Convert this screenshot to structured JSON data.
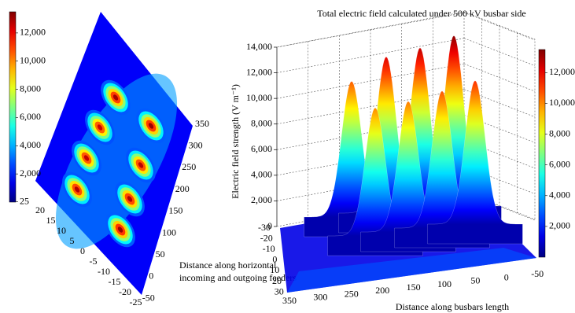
{
  "chart_data": [
    {
      "type": "surface",
      "colormap": "jet",
      "clim": [
        0,
        13500
      ],
      "colorbar_ticks": [
        {
          "value": 12000,
          "label": "12,000"
        },
        {
          "value": 10000,
          "label": "10,000"
        },
        {
          "value": 8000,
          "label": "8,000"
        },
        {
          "value": 6000,
          "label": "6,000"
        },
        {
          "value": 4000,
          "label": "4,000"
        },
        {
          "value": 2000,
          "label": "2,000"
        },
        25
      ],
      "yticks": [
        20,
        15,
        10,
        5,
        0,
        -5,
        -10,
        -15,
        -20,
        -25
      ],
      "xticks": [
        350,
        300,
        250,
        200,
        150,
        100,
        50,
        0,
        -50
      ],
      "xlabel": [
        "Distance along  horizontal",
        "incoming and outgoing feeders"
      ],
      "peak_values": [
        13000,
        12500,
        12600,
        12800,
        13100,
        12700,
        12900,
        13200
      ]
    },
    {
      "type": "surface",
      "title": "Total electric field calculated under 500 kV busbar side",
      "colormap": "jet",
      "clim": [
        0,
        13500
      ],
      "colorbar_ticks": [
        {
          "value": 12000,
          "label": "12,000"
        },
        {
          "value": 10000,
          "label": "10,000"
        },
        {
          "value": 8000,
          "label": "8,000"
        },
        {
          "value": 6000,
          "label": "6,000"
        },
        {
          "value": 4000,
          "label": "4,000"
        },
        {
          "value": 2000,
          "label": "2,000"
        }
      ],
      "zlim": [
        0,
        14000
      ],
      "zticks": [
        0,
        {
          "value": 2000,
          "label": "2,000"
        },
        {
          "value": 4000,
          "label": "4,000"
        },
        {
          "value": 6000,
          "label": "6,000"
        },
        {
          "value": 8000,
          "label": "8,000"
        },
        {
          "value": 10000,
          "label": "10,000"
        },
        {
          "value": 12000,
          "label": "12,000"
        },
        {
          "value": 14000,
          "label": "14,000"
        }
      ],
      "yticks": [
        -30,
        -20,
        -10,
        0,
        10,
        20,
        30
      ],
      "xticks": [
        350,
        300,
        250,
        200,
        150,
        100,
        50,
        0,
        -50
      ],
      "zlabel": "Electric field strength (V m⁻¹)",
      "xlabel": "Distance along busbars length",
      "peak_values": [
        10600,
        12200,
        12600,
        13300,
        10000,
        10200,
        10700,
        11200
      ]
    }
  ]
}
